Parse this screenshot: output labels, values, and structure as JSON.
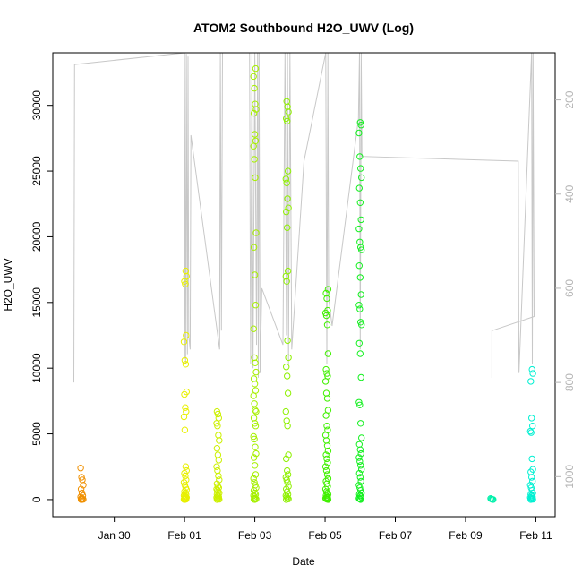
{
  "chart_data": {
    "type": "scatter",
    "title": "ATOM2 Southbound H2O_UWV (Log)",
    "xlabel": "Date",
    "ylabel": "H2O_UWV",
    "x_ticks": [
      {
        "day": 0,
        "label": "Jan 30"
      },
      {
        "day": 2,
        "label": "Feb 01"
      },
      {
        "day": 4,
        "label": "Feb 03"
      },
      {
        "day": 6,
        "label": "Feb 05"
      },
      {
        "day": 8,
        "label": "Feb 07"
      },
      {
        "day": 10,
        "label": "Feb 09"
      },
      {
        "day": 12,
        "label": "Feb 11"
      }
    ],
    "x_range_days": [
      -1.75,
      12.55
    ],
    "y_ticks": [
      0,
      5000,
      10000,
      15000,
      20000,
      25000,
      30000
    ],
    "y_tick_labels": [
      "0",
      "5000",
      "10000",
      "15000",
      "20000",
      "25000",
      "30000"
    ],
    "ylim": [
      -1300,
      34000
    ],
    "right_axis": {
      "ticks": [
        200,
        400,
        600,
        800,
        1000
      ],
      "tick_labels": [
        "200",
        "400",
        "600",
        "800",
        "1000"
      ],
      "range_top_to_bottom": [
        100,
        1085
      ],
      "color": "#b4b4b4"
    },
    "point_groups": [
      {
        "day": -0.92,
        "color": "#f09000",
        "values": [
          2400,
          1700,
          1500,
          1100,
          800,
          500,
          300,
          200,
          100,
          50,
          20,
          5,
          0
        ]
      },
      {
        "day": 2.02,
        "color": "#e8f000",
        "values": [
          17400,
          17000,
          16600,
          16400,
          12500,
          12000,
          10600,
          10300,
          8200,
          8000,
          7000,
          6700,
          6300,
          5300,
          2500,
          2200,
          2000,
          1800,
          1500,
          1300,
          1100,
          900,
          750,
          600,
          500,
          400,
          300,
          250,
          200,
          150,
          100,
          60,
          30,
          10,
          0
        ]
      },
      {
        "day": 2.95,
        "color": "#ccf000",
        "values": [
          6700,
          6500,
          6200,
          5800,
          5600,
          4900,
          4500,
          3900,
          3400,
          3000,
          2500,
          2200,
          1800,
          1500,
          1200,
          1000,
          900,
          800,
          700,
          600,
          500,
          400,
          300,
          200,
          150,
          100,
          50,
          20,
          0
        ]
      },
      {
        "day": 4.0,
        "color": "#a6f000",
        "values": [
          32800,
          32200,
          31300,
          30100,
          29700,
          29400,
          27800,
          27300,
          26900,
          25900,
          24500,
          20300,
          19200,
          17100,
          14800,
          13000,
          10800,
          10400,
          9700,
          9200,
          8800,
          8300,
          7900,
          7300,
          6800,
          6700,
          6200,
          5800,
          5600,
          4800,
          4600,
          4000,
          3500,
          3200,
          2600,
          1900,
          1600,
          1300,
          1100,
          900,
          700,
          500,
          400,
          300,
          200,
          100,
          50,
          20,
          0
        ]
      },
      {
        "day": 4.92,
        "color": "#8ef000",
        "values": [
          30300,
          29900,
          29500,
          29000,
          28800,
          25000,
          24400,
          24100,
          22900,
          22200,
          21900,
          20700,
          17400,
          17000,
          16600,
          12100,
          10800,
          10100,
          9400,
          8100,
          6700,
          6000,
          5600,
          3400,
          3100,
          2200,
          1900,
          1700,
          1500,
          1300,
          1000,
          800,
          600,
          400,
          300,
          200,
          100,
          50,
          0
        ]
      },
      {
        "day": 6.05,
        "color": "#40f000",
        "values": [
          16000,
          15700,
          15300,
          14400,
          14200,
          14000,
          13300,
          11100,
          9900,
          9600,
          9400,
          9000,
          8100,
          7700,
          6800,
          6400,
          5600,
          5300,
          4900,
          4500,
          4100,
          3700,
          3400,
          3100,
          2800,
          2500,
          2200,
          1900,
          1600,
          1400,
          1200,
          1000,
          800,
          600,
          500,
          400,
          300,
          200,
          150,
          100,
          50,
          20,
          0
        ]
      },
      {
        "day": 7.0,
        "color": "#14f020",
        "values": [
          28700,
          28500,
          27900,
          26100,
          25200,
          24500,
          23700,
          22600,
          21300,
          20600,
          19600,
          19200,
          19000,
          17800,
          16900,
          15600,
          14800,
          14500,
          13500,
          13300,
          11900,
          11100,
          9300,
          7400,
          7200,
          5800,
          4700,
          4200,
          3800,
          3500,
          3200,
          2900,
          2600,
          2300,
          2000,
          1700,
          1400,
          1100,
          900,
          700,
          500,
          400,
          300,
          200,
          100,
          50,
          0
        ]
      },
      {
        "day": 10.75,
        "color": "#00f0aa",
        "values": [
          80,
          40,
          10,
          0
        ]
      },
      {
        "day": 11.88,
        "color": "#00f0d2",
        "values": [
          9900,
          9600,
          9000,
          6200,
          5600,
          5200,
          5100,
          3100,
          2300,
          2100,
          1700,
          1400,
          1100,
          900,
          700,
          500,
          400,
          300,
          200,
          150,
          100,
          50,
          20,
          0
        ]
      }
    ],
    "trace_line": {
      "color": "#c8c8c8",
      "points": [
        [
          -1.15,
          800
        ],
        [
          -1.13,
          125
        ],
        [
          2.0,
          100
        ],
        [
          2.0,
          750
        ],
        [
          2.0,
          105
        ],
        [
          2.03,
          760
        ],
        [
          2.05,
          102
        ],
        [
          2.08,
          740
        ],
        [
          2.1,
          108
        ],
        [
          2.12,
          700
        ],
        [
          2.16,
          730
        ],
        [
          2.18,
          275
        ],
        [
          3.0,
          730
        ],
        [
          3.02,
          100
        ],
        [
          3.05,
          690
        ],
        [
          3.08,
          100
        ],
        [
          3.85,
          100
        ],
        [
          3.88,
          760
        ],
        [
          3.92,
          100
        ],
        [
          3.95,
          770
        ],
        [
          4.0,
          100
        ],
        [
          4.05,
          720
        ],
        [
          4.08,
          100
        ],
        [
          4.1,
          790
        ],
        [
          4.12,
          100
        ],
        [
          4.15,
          780
        ],
        [
          4.2,
          600
        ],
        [
          4.8,
          720
        ],
        [
          4.86,
          100
        ],
        [
          4.9,
          700
        ],
        [
          4.93,
          100
        ],
        [
          4.96,
          760
        ],
        [
          5.0,
          100
        ],
        [
          5.05,
          730
        ],
        [
          5.4,
          330
        ],
        [
          6.02,
          100
        ],
        [
          6.05,
          760
        ],
        [
          6.08,
          100
        ],
        [
          6.1,
          620
        ],
        [
          6.2,
          680
        ],
        [
          6.95,
          240
        ],
        [
          6.98,
          100
        ],
        [
          7.0,
          730
        ],
        [
          7.03,
          100
        ],
        [
          7.05,
          320
        ],
        [
          11.5,
          330
        ],
        [
          11.52,
          780
        ],
        [
          11.88,
          100
        ],
        [
          11.9,
          760
        ],
        [
          11.92,
          100
        ],
        [
          11.95,
          660
        ],
        [
          10.75,
          690
        ],
        [
          10.75,
          790
        ]
      ]
    }
  }
}
